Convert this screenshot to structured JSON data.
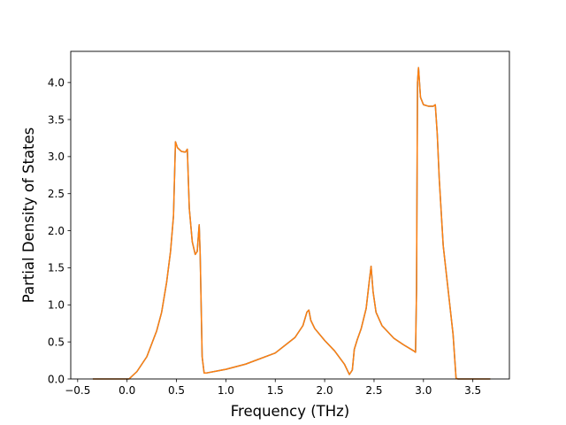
{
  "chart_data": {
    "type": "line",
    "title": "",
    "xlabel": "Frequency (THz)",
    "ylabel": "Partial Density of States",
    "xlim": [
      -0.57,
      3.87
    ],
    "ylim": [
      0.0,
      4.42
    ],
    "xticks": [
      -0.5,
      0.0,
      0.5,
      1.0,
      1.5,
      2.0,
      2.5,
      3.0,
      3.5
    ],
    "xtick_labels": [
      "−0.5",
      "0.0",
      "0.5",
      "1.0",
      "1.5",
      "2.0",
      "2.5",
      "3.0",
      "3.5"
    ],
    "yticks": [
      0.0,
      0.5,
      1.0,
      1.5,
      2.0,
      2.5,
      3.0,
      3.5,
      4.0
    ],
    "ytick_labels": [
      "0.0",
      "0.5",
      "1.0",
      "1.5",
      "2.0",
      "2.5",
      "3.0",
      "3.5",
      "4.0"
    ],
    "grid": false,
    "legend": "none",
    "series": [
      {
        "color": "#1f77b4",
        "x": [
          -0.34,
          0.02,
          0.1,
          0.2,
          0.3,
          0.35,
          0.4,
          0.44,
          0.47,
          0.49,
          0.51,
          0.55,
          0.59,
          0.61,
          0.63,
          0.66,
          0.69,
          0.71,
          0.73,
          0.74,
          0.76,
          0.78,
          0.8,
          1.0,
          1.2,
          1.5,
          1.7,
          1.78,
          1.82,
          1.84,
          1.86,
          1.9,
          2.0,
          2.1,
          2.2,
          2.25,
          2.28,
          2.3,
          2.33,
          2.37,
          2.42,
          2.45,
          2.47,
          2.49,
          2.52,
          2.58,
          2.7,
          2.8,
          2.9,
          2.92,
          2.93,
          2.94,
          2.95,
          2.97,
          3.0,
          3.05,
          3.1,
          3.12,
          3.14,
          3.16,
          3.2,
          3.25,
          3.3,
          3.33,
          3.35,
          3.67
        ],
        "y": [
          0.0,
          0.0,
          0.1,
          0.3,
          0.65,
          0.9,
          1.3,
          1.72,
          2.2,
          3.2,
          3.12,
          3.07,
          3.06,
          3.1,
          2.3,
          1.85,
          1.68,
          1.72,
          2.08,
          1.68,
          0.3,
          0.08,
          0.08,
          0.13,
          0.2,
          0.35,
          0.56,
          0.72,
          0.9,
          0.93,
          0.79,
          0.68,
          0.52,
          0.38,
          0.2,
          0.06,
          0.12,
          0.4,
          0.53,
          0.68,
          0.95,
          1.3,
          1.52,
          1.18,
          0.9,
          0.72,
          0.55,
          0.46,
          0.38,
          0.36,
          1.2,
          4.0,
          4.2,
          3.8,
          3.7,
          3.68,
          3.68,
          3.7,
          3.3,
          2.7,
          1.8,
          1.2,
          0.6,
          0.01,
          0.0,
          0.0
        ]
      },
      {
        "color": "#ff7f0e",
        "x": [
          -0.34,
          0.02,
          0.1,
          0.2,
          0.3,
          0.35,
          0.4,
          0.44,
          0.47,
          0.49,
          0.51,
          0.55,
          0.59,
          0.61,
          0.63,
          0.66,
          0.69,
          0.71,
          0.73,
          0.74,
          0.76,
          0.78,
          0.8,
          1.0,
          1.2,
          1.5,
          1.7,
          1.78,
          1.82,
          1.84,
          1.86,
          1.9,
          2.0,
          2.1,
          2.2,
          2.25,
          2.28,
          2.3,
          2.33,
          2.37,
          2.42,
          2.45,
          2.47,
          2.49,
          2.52,
          2.58,
          2.7,
          2.8,
          2.9,
          2.92,
          2.93,
          2.94,
          2.95,
          2.97,
          3.0,
          3.05,
          3.1,
          3.12,
          3.14,
          3.16,
          3.2,
          3.25,
          3.3,
          3.33,
          3.35,
          3.67
        ],
        "y": [
          0.0,
          0.0,
          0.1,
          0.3,
          0.65,
          0.9,
          1.3,
          1.72,
          2.2,
          3.2,
          3.12,
          3.07,
          3.06,
          3.1,
          2.3,
          1.85,
          1.68,
          1.72,
          2.08,
          1.68,
          0.3,
          0.08,
          0.08,
          0.13,
          0.2,
          0.35,
          0.56,
          0.72,
          0.9,
          0.93,
          0.79,
          0.68,
          0.52,
          0.38,
          0.2,
          0.06,
          0.12,
          0.4,
          0.53,
          0.68,
          0.95,
          1.3,
          1.52,
          1.18,
          0.9,
          0.72,
          0.55,
          0.46,
          0.38,
          0.36,
          1.2,
          4.0,
          4.2,
          3.8,
          3.7,
          3.68,
          3.68,
          3.7,
          3.3,
          2.7,
          1.8,
          1.2,
          0.6,
          0.01,
          0.0,
          0.0
        ]
      }
    ]
  }
}
